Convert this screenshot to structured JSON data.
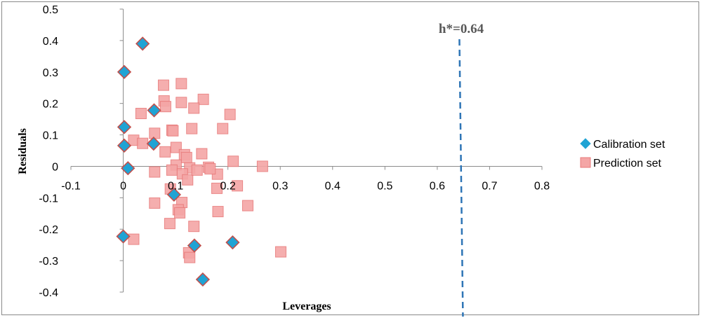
{
  "chart_data": {
    "type": "scatter",
    "title": "",
    "xlabel": "Leverages",
    "ylabel": "Residuals",
    "xlim": [
      -0.1,
      0.8
    ],
    "ylim": [
      -0.4,
      0.5
    ],
    "x_ticks": [
      "-0.1",
      "0",
      "0.1",
      "0.2",
      "0.3",
      "0.4",
      "0.5",
      "0.6",
      "0.7",
      "0.8"
    ],
    "y_ticks": [
      "0.5",
      "0.4",
      "0.3",
      "0.2",
      "0.1",
      "0",
      "-0.1",
      "-0.2",
      "-0.3",
      "-0.4"
    ],
    "grid": false,
    "legend_position": "right",
    "threshold": {
      "label": "h*=0.64",
      "x": 0.645,
      "color": "#2e75b6"
    },
    "series": [
      {
        "name": "Calibration set",
        "marker": "diamond",
        "color": "#1fa3d4",
        "edge_color": "#c0504d",
        "points": [
          [
            0.037,
            0.39
          ],
          [
            0.002,
            0.3
          ],
          [
            0.059,
            0.178
          ],
          [
            0.002,
            0.125
          ],
          [
            0.058,
            0.072
          ],
          [
            0.002,
            0.066
          ],
          [
            0.009,
            -0.006
          ],
          [
            0.097,
            -0.09
          ],
          [
            0.0,
            -0.223
          ],
          [
            0.136,
            -0.252
          ],
          [
            0.209,
            -0.242
          ],
          [
            0.152,
            -0.36
          ]
        ]
      },
      {
        "name": "Prediction set",
        "marker": "square",
        "color": "#f4a6a6",
        "edge_color": "#e87b7b",
        "points": [
          [
            0.077,
            0.258
          ],
          [
            0.111,
            0.263
          ],
          [
            0.078,
            0.208
          ],
          [
            0.111,
            0.203
          ],
          [
            0.153,
            0.213
          ],
          [
            0.081,
            0.19
          ],
          [
            0.135,
            0.185
          ],
          [
            0.034,
            0.168
          ],
          [
            0.204,
            0.165
          ],
          [
            0.06,
            0.105
          ],
          [
            0.093,
            0.115
          ],
          [
            0.095,
            0.113
          ],
          [
            0.131,
            0.12
          ],
          [
            0.19,
            0.12
          ],
          [
            0.02,
            0.083
          ],
          [
            0.037,
            0.073
          ],
          [
            0.101,
            0.06
          ],
          [
            0.08,
            0.046
          ],
          [
            0.117,
            0.037
          ],
          [
            0.121,
            0.028
          ],
          [
            0.15,
            0.04
          ],
          [
            0.21,
            0.016
          ],
          [
            0.127,
            -0.005
          ],
          [
            0.163,
            -0.003
          ],
          [
            0.266,
            0.0
          ],
          [
            0.101,
            0.004
          ],
          [
            0.06,
            -0.018
          ],
          [
            0.093,
            -0.012
          ],
          [
            0.113,
            -0.024
          ],
          [
            0.123,
            -0.043
          ],
          [
            0.141,
            -0.012
          ],
          [
            0.18,
            -0.025
          ],
          [
            0.166,
            -0.008
          ],
          [
            0.218,
            -0.062
          ],
          [
            0.179,
            -0.07
          ],
          [
            0.09,
            -0.072
          ],
          [
            0.06,
            -0.117
          ],
          [
            0.112,
            -0.115
          ],
          [
            0.105,
            -0.138
          ],
          [
            0.108,
            -0.148
          ],
          [
            0.181,
            -0.144
          ],
          [
            0.238,
            -0.125
          ],
          [
            0.089,
            -0.182
          ],
          [
            0.135,
            -0.191
          ],
          [
            0.02,
            -0.232
          ],
          [
            0.125,
            -0.275
          ],
          [
            0.127,
            -0.29
          ],
          [
            0.301,
            -0.272
          ]
        ]
      }
    ]
  }
}
